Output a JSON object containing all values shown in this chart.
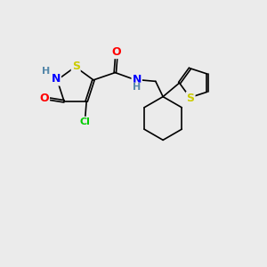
{
  "bg_color": "#ebebeb",
  "bond_color": "#000000",
  "bond_width": 1.2,
  "atom_colors": {
    "S": "#cccc00",
    "N": "#0000ff",
    "O": "#ff0000",
    "Cl": "#00cc00",
    "H": "#5588aa",
    "C": "#000000"
  },
  "font_size": 9,
  "small_font_size": 8
}
